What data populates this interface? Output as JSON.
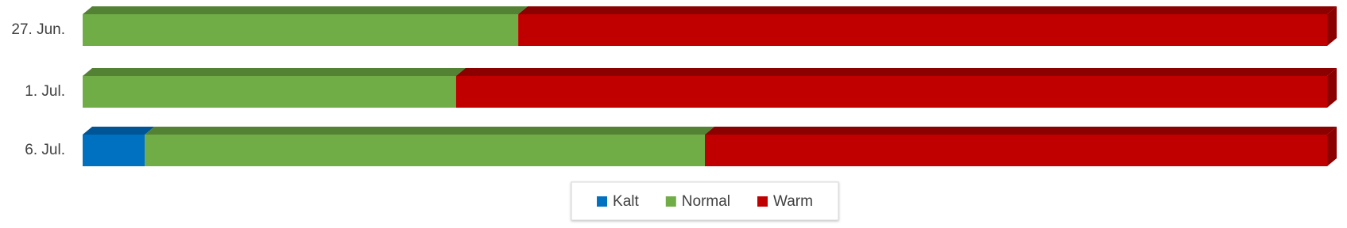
{
  "chart_data": {
    "type": "bar",
    "orientation": "horizontal",
    "stacked": true,
    "categories": [
      "27. Jun.",
      "1. Jul.",
      "6. Jul."
    ],
    "series": [
      {
        "name": "Kalt",
        "color": "#0070c0",
        "top_color": "#005596",
        "values": [
          0,
          0,
          5
        ]
      },
      {
        "name": "Normal",
        "color": "#70ad47",
        "top_color": "#548235",
        "values": [
          35,
          30,
          45
        ]
      },
      {
        "name": "Warm",
        "color": "#c00000",
        "top_color": "#8b0000",
        "values": [
          65,
          70,
          50
        ]
      }
    ],
    "xlim": [
      0,
      100
    ],
    "legend": "bottom"
  }
}
